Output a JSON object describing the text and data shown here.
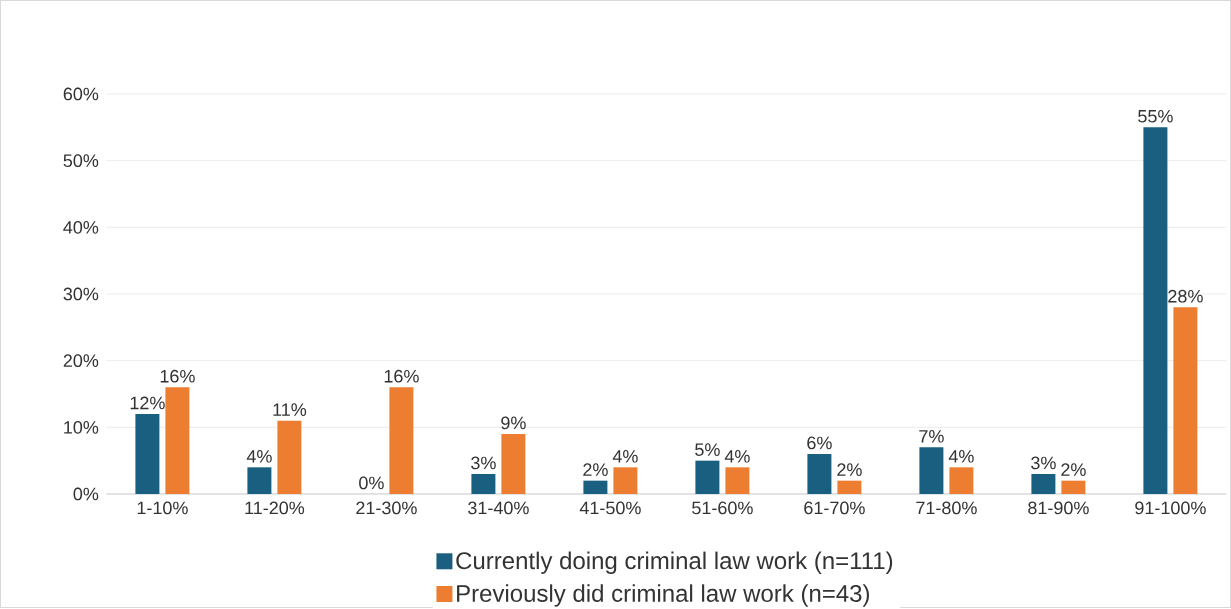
{
  "chart_data": {
    "type": "bar",
    "categories": [
      "1-10%",
      "11-20%",
      "21-30%",
      "31-40%",
      "41-50%",
      "51-60%",
      "61-70%",
      "71-80%",
      "81-90%",
      "91-100%"
    ],
    "series": [
      {
        "name": "Currently doing criminal law work (n=111)",
        "color": "#1a5f7f",
        "values": [
          12,
          4,
          0,
          3,
          2,
          5,
          6,
          7,
          3,
          55
        ],
        "value_labels": [
          "12%",
          "4%",
          "0%",
          "3%",
          "2%",
          "5%",
          "6%",
          "7%",
          "3%",
          "55%"
        ]
      },
      {
        "name": "Previously did criminal law work (n=43)",
        "color": "#ed7d31",
        "values": [
          16,
          11,
          16,
          9,
          4,
          4,
          2,
          4,
          2,
          28
        ],
        "value_labels": [
          "16%",
          "11%",
          "16%",
          "9%",
          "4%",
          "4%",
          "2%",
          "4%",
          "2%",
          "28%"
        ]
      }
    ],
    "ylim": [
      0,
      60
    ],
    "yticks": [
      {
        "value": 0,
        "label": "0%"
      },
      {
        "value": 10,
        "label": "10%"
      },
      {
        "value": 20,
        "label": "20%"
      },
      {
        "value": 30,
        "label": "30%"
      },
      {
        "value": 40,
        "label": "40%"
      },
      {
        "value": 50,
        "label": "50%"
      },
      {
        "value": 60,
        "label": "60%"
      }
    ],
    "grid": "y",
    "legend": "bottom"
  }
}
